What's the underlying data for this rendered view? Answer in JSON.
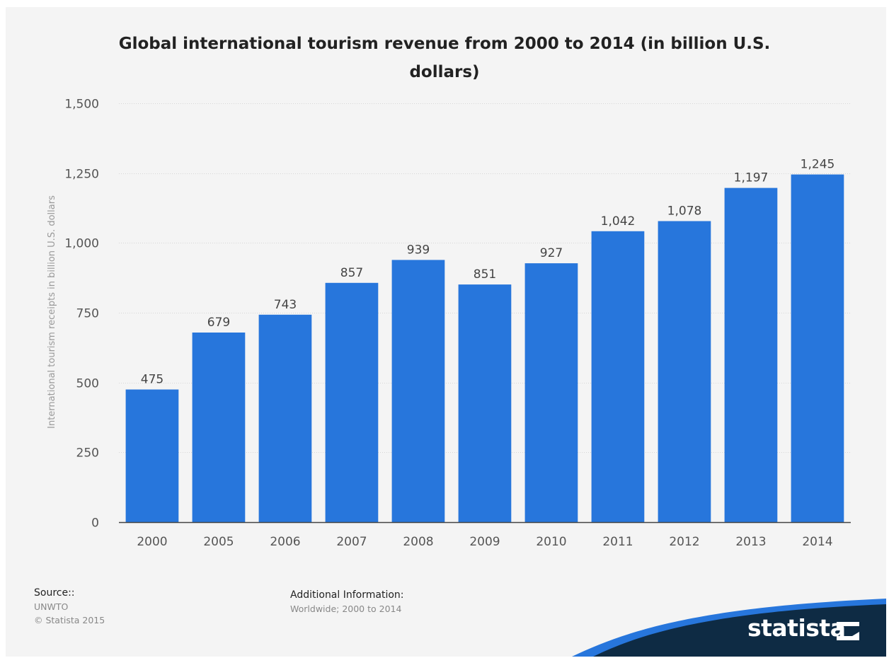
{
  "chart_data": {
    "type": "bar",
    "title": "Global international tourism revenue from 2000 to 2014 (in billion U.S. dollars)",
    "xlabel": "",
    "ylabel": "International tourism receipts in billion U.S. dollars",
    "categories": [
      "2000",
      "2005",
      "2006",
      "2007",
      "2008",
      "2009",
      "2010",
      "2011",
      "2012",
      "2013",
      "2014"
    ],
    "values": [
      475,
      679,
      743,
      857,
      939,
      851,
      927,
      1042,
      1078,
      1197,
      1245
    ],
    "value_labels": [
      "475",
      "679",
      "743",
      "857",
      "939",
      "851",
      "927",
      "1,042",
      "1,078",
      "1,197",
      "1,245"
    ],
    "ylim": [
      0,
      1500
    ],
    "yticks": [
      0,
      250,
      500,
      750,
      1000,
      1250,
      1500
    ],
    "ytick_labels": [
      "0",
      "250",
      "500",
      "750",
      "1,000",
      "1,250",
      "1,500"
    ],
    "grid": true,
    "legend": "none",
    "bar_color": "#2776dc"
  },
  "footer": {
    "source_heading": "Source::",
    "source_lines": [
      "UNWTO",
      "© Statista 2015"
    ],
    "info_heading": "Additional Information:",
    "info_lines": [
      "Worldwide; 2000 to 2014"
    ]
  },
  "brand": {
    "name": "statista",
    "swoosh_color": "#0e2b44",
    "accent_color": "#2776dc",
    "icon": "statista-logo-icon"
  }
}
